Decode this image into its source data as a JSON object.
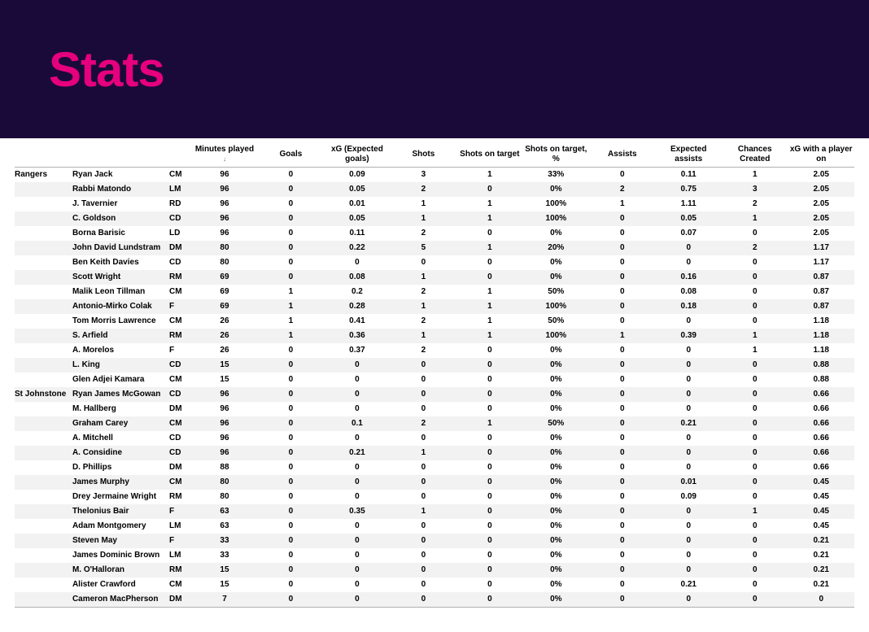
{
  "title": "Stats",
  "banner_bg": "#1a0a3a",
  "title_color": "#e6007e",
  "row_alt_bg": "#f2f2f2",
  "row_bg": "#ffffff",
  "border_color": "#b0b0b0",
  "columns": [
    "Minutes played",
    "Goals",
    "xG (Expected goals)",
    "Shots",
    "Shots on target",
    "Shots on target, %",
    "Assists",
    "Expected assists",
    "Chances Created",
    "xG with a player on"
  ],
  "sort_column_index": 0,
  "teams": [
    {
      "name": "Rangers",
      "players": [
        {
          "name": "Ryan Jack",
          "pos": "CM",
          "vals": [
            "96",
            "0",
            "0.09",
            "3",
            "1",
            "33%",
            "0",
            "0.11",
            "1",
            "2.05"
          ]
        },
        {
          "name": "Rabbi Matondo",
          "pos": "LM",
          "vals": [
            "96",
            "0",
            "0.05",
            "2",
            "0",
            "0%",
            "2",
            "0.75",
            "3",
            "2.05"
          ]
        },
        {
          "name": "J. Tavernier",
          "pos": "RD",
          "vals": [
            "96",
            "0",
            "0.01",
            "1",
            "1",
            "100%",
            "1",
            "1.11",
            "2",
            "2.05"
          ]
        },
        {
          "name": "C. Goldson",
          "pos": "CD",
          "vals": [
            "96",
            "0",
            "0.05",
            "1",
            "1",
            "100%",
            "0",
            "0.05",
            "1",
            "2.05"
          ]
        },
        {
          "name": "Borna Barisic",
          "pos": "LD",
          "vals": [
            "96",
            "0",
            "0.11",
            "2",
            "0",
            "0%",
            "0",
            "0.07",
            "0",
            "2.05"
          ]
        },
        {
          "name": "John David Lundstram",
          "pos": "DM",
          "vals": [
            "80",
            "0",
            "0.22",
            "5",
            "1",
            "20%",
            "0",
            "0",
            "2",
            "1.17"
          ]
        },
        {
          "name": "Ben Keith Davies",
          "pos": "CD",
          "vals": [
            "80",
            "0",
            "0",
            "0",
            "0",
            "0%",
            "0",
            "0",
            "0",
            "1.17"
          ]
        },
        {
          "name": "Scott Wright",
          "pos": "RM",
          "vals": [
            "69",
            "0",
            "0.08",
            "1",
            "0",
            "0%",
            "0",
            "0.16",
            "0",
            "0.87"
          ]
        },
        {
          "name": "Malik Leon Tillman",
          "pos": "CM",
          "vals": [
            "69",
            "1",
            "0.2",
            "2",
            "1",
            "50%",
            "0",
            "0.08",
            "0",
            "0.87"
          ]
        },
        {
          "name": "Antonio-Mirko Colak",
          "pos": "F",
          "vals": [
            "69",
            "1",
            "0.28",
            "1",
            "1",
            "100%",
            "0",
            "0.18",
            "0",
            "0.87"
          ]
        },
        {
          "name": "Tom Morris Lawrence",
          "pos": "CM",
          "vals": [
            "26",
            "1",
            "0.41",
            "2",
            "1",
            "50%",
            "0",
            "0",
            "0",
            "1.18"
          ]
        },
        {
          "name": "S. Arfield",
          "pos": "RM",
          "vals": [
            "26",
            "1",
            "0.36",
            "1",
            "1",
            "100%",
            "1",
            "0.39",
            "1",
            "1.18"
          ]
        },
        {
          "name": "A. Morelos",
          "pos": "F",
          "vals": [
            "26",
            "0",
            "0.37",
            "2",
            "0",
            "0%",
            "0",
            "0",
            "1",
            "1.18"
          ]
        },
        {
          "name": "L. King",
          "pos": "CD",
          "vals": [
            "15",
            "0",
            "0",
            "0",
            "0",
            "0%",
            "0",
            "0",
            "0",
            "0.88"
          ]
        },
        {
          "name": "Glen Adjei Kamara",
          "pos": "CM",
          "vals": [
            "15",
            "0",
            "0",
            "0",
            "0",
            "0%",
            "0",
            "0",
            "0",
            "0.88"
          ]
        }
      ]
    },
    {
      "name": "St Johnstone",
      "players": [
        {
          "name": "Ryan James McGowan",
          "pos": "CD",
          "vals": [
            "96",
            "0",
            "0",
            "0",
            "0",
            "0%",
            "0",
            "0",
            "0",
            "0.66"
          ]
        },
        {
          "name": "M. Hallberg",
          "pos": "DM",
          "vals": [
            "96",
            "0",
            "0",
            "0",
            "0",
            "0%",
            "0",
            "0",
            "0",
            "0.66"
          ]
        },
        {
          "name": "Graham Carey",
          "pos": "CM",
          "vals": [
            "96",
            "0",
            "0.1",
            "2",
            "1",
            "50%",
            "0",
            "0.21",
            "0",
            "0.66"
          ]
        },
        {
          "name": "A. Mitchell",
          "pos": "CD",
          "vals": [
            "96",
            "0",
            "0",
            "0",
            "0",
            "0%",
            "0",
            "0",
            "0",
            "0.66"
          ]
        },
        {
          "name": "A. Considine",
          "pos": "CD",
          "vals": [
            "96",
            "0",
            "0.21",
            "1",
            "0",
            "0%",
            "0",
            "0",
            "0",
            "0.66"
          ]
        },
        {
          "name": "D. Phillips",
          "pos": "DM",
          "vals": [
            "88",
            "0",
            "0",
            "0",
            "0",
            "0%",
            "0",
            "0",
            "0",
            "0.66"
          ]
        },
        {
          "name": "James Murphy",
          "pos": "CM",
          "vals": [
            "80",
            "0",
            "0",
            "0",
            "0",
            "0%",
            "0",
            "0.01",
            "0",
            "0.45"
          ]
        },
        {
          "name": "Drey Jermaine Wright",
          "pos": "RM",
          "vals": [
            "80",
            "0",
            "0",
            "0",
            "0",
            "0%",
            "0",
            "0.09",
            "0",
            "0.45"
          ]
        },
        {
          "name": "Thelonius Bair",
          "pos": "F",
          "vals": [
            "63",
            "0",
            "0.35",
            "1",
            "0",
            "0%",
            "0",
            "0",
            "1",
            "0.45"
          ]
        },
        {
          "name": "Adam Montgomery",
          "pos": "LM",
          "vals": [
            "63",
            "0",
            "0",
            "0",
            "0",
            "0%",
            "0",
            "0",
            "0",
            "0.45"
          ]
        },
        {
          "name": "Steven May",
          "pos": "F",
          "vals": [
            "33",
            "0",
            "0",
            "0",
            "0",
            "0%",
            "0",
            "0",
            "0",
            "0.21"
          ]
        },
        {
          "name": "James Dominic Brown",
          "pos": "LM",
          "vals": [
            "33",
            "0",
            "0",
            "0",
            "0",
            "0%",
            "0",
            "0",
            "0",
            "0.21"
          ]
        },
        {
          "name": "M. O'Halloran",
          "pos": "RM",
          "vals": [
            "15",
            "0",
            "0",
            "0",
            "0",
            "0%",
            "0",
            "0",
            "0",
            "0.21"
          ]
        },
        {
          "name": "Alister Crawford",
          "pos": "CM",
          "vals": [
            "15",
            "0",
            "0",
            "0",
            "0",
            "0%",
            "0",
            "0.21",
            "0",
            "0.21"
          ]
        },
        {
          "name": "Cameron MacPherson",
          "pos": "DM",
          "vals": [
            "7",
            "0",
            "0",
            "0",
            "0",
            "0%",
            "0",
            "0",
            "0",
            "0"
          ]
        }
      ]
    }
  ]
}
